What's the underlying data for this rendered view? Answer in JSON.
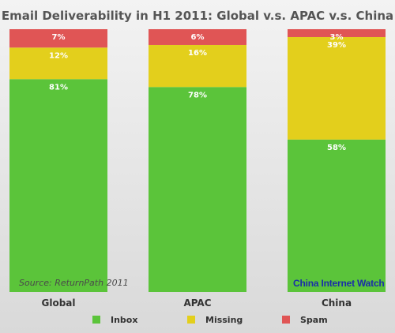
{
  "chart_data": {
    "type": "bar",
    "stacked": true,
    "title": "Email Deliverability in H1 2011: Global v.s. APAC v.s. China",
    "categories": [
      "Global",
      "APAC",
      "China"
    ],
    "series": [
      {
        "name": "Inbox",
        "color": "#5bc43a",
        "values": [
          81,
          78,
          58
        ],
        "labels": [
          "81%",
          "78%",
          "58%"
        ]
      },
      {
        "name": "Missing",
        "color": "#e3cf1c",
        "values": [
          12,
          16,
          39
        ],
        "labels": [
          "12%",
          "16%",
          "39%"
        ]
      },
      {
        "name": "Spam",
        "color": "#e05555",
        "values": [
          7,
          6,
          3
        ],
        "labels": [
          "7%",
          "6%",
          "3%"
        ]
      }
    ],
    "ylim": [
      0,
      100
    ],
    "legend_position": "bottom"
  },
  "source_note": "Source: ReturnPath 2011",
  "watermark": "China Internet Watch"
}
